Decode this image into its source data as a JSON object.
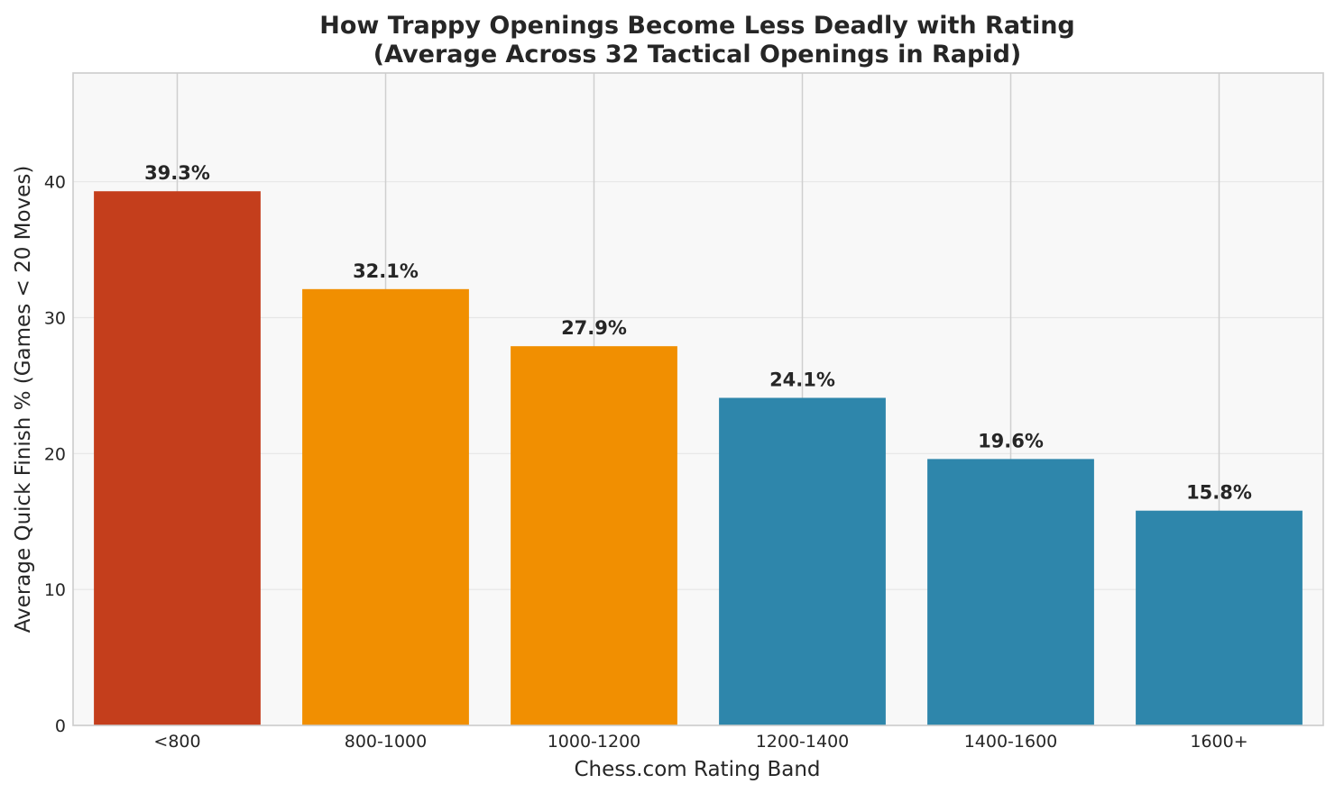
{
  "chart_data": {
    "type": "bar",
    "title": "How Trappy Openings Become Less Deadly with Rating",
    "subtitle": "(Average Across 32 Tactical Openings in Rapid)",
    "xlabel": "Chess.com Rating Band",
    "ylabel": "Average Quick Finish % (Games < 20 Moves)",
    "categories": [
      "<800",
      "800-1000",
      "1000-1200",
      "1200-1400",
      "1400-1600",
      "1600+"
    ],
    "values": [
      39.3,
      32.1,
      27.9,
      24.1,
      19.6,
      15.8
    ],
    "data_labels": [
      "39.3%",
      "32.1%",
      "27.9%",
      "24.1%",
      "19.6%",
      "15.8%"
    ],
    "bar_colors": [
      "#c43e1c",
      "#f18f01",
      "#f18f01",
      "#2e86ab",
      "#2e86ab",
      "#2e86ab"
    ],
    "ylim": [
      0,
      48
    ],
    "yticks": [
      0,
      10,
      20,
      30,
      40
    ],
    "grid": true,
    "legend": "none"
  },
  "colors": {
    "plot_background": "#f8f8f8",
    "grid": "#e6e6e6",
    "spine": "#cccccc",
    "text": "#262626"
  }
}
